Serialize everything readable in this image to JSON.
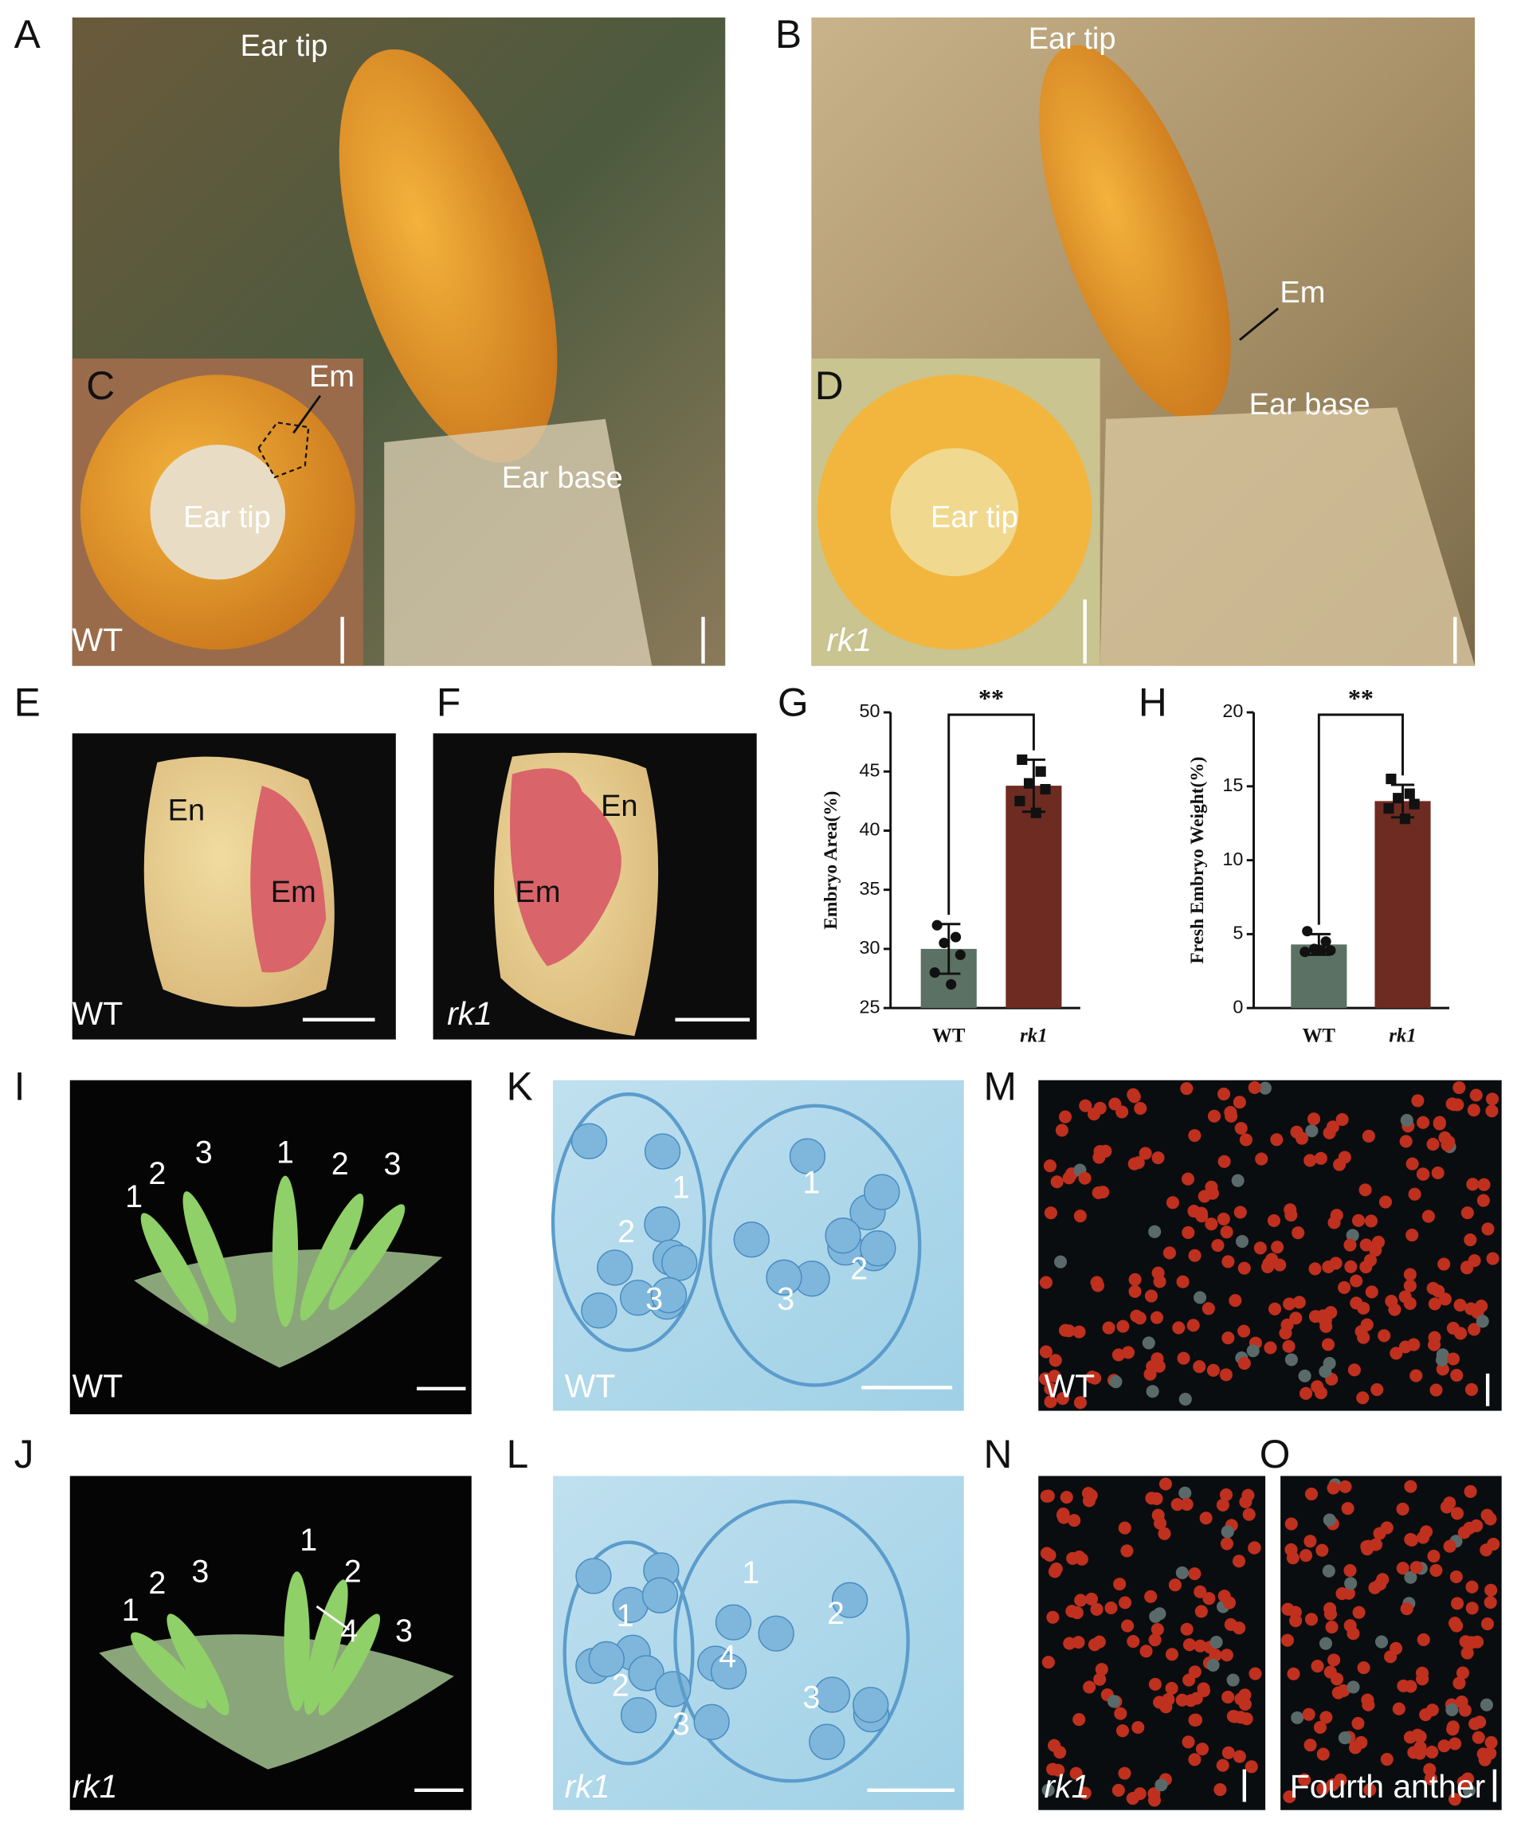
{
  "panels": {
    "a": {
      "letter": "A",
      "ear_tip": "Ear tip",
      "ear_base": "Ear base"
    },
    "b": {
      "letter": "B",
      "ear_tip": "Ear tip",
      "em": "Em",
      "ear_base": "Ear base"
    },
    "c": {
      "letter": "C",
      "em": "Em",
      "ear_tip": "Ear tip",
      "genotype": "WT"
    },
    "d": {
      "letter": "D",
      "ear_tip": "Ear tip",
      "genotype": "rk1"
    },
    "e": {
      "letter": "E",
      "en": "En",
      "em": "Em",
      "genotype": "WT"
    },
    "f": {
      "letter": "F",
      "en": "En",
      "em": "Em",
      "genotype": "rk1"
    },
    "i": {
      "letter": "I",
      "numbers": [
        1,
        2,
        3,
        1,
        2,
        3
      ],
      "genotype": "WT"
    },
    "j": {
      "letter": "J",
      "numbers": [
        1,
        2,
        3,
        1,
        2,
        4,
        3
      ],
      "genotype": "rk1"
    },
    "k": {
      "letter": "K",
      "numbers": [
        1,
        2,
        3,
        1,
        2,
        3
      ],
      "genotype": "WT"
    },
    "l": {
      "letter": "L",
      "numbers": [
        1,
        2,
        3,
        1,
        2,
        4,
        3
      ],
      "genotype": "rk1"
    },
    "m": {
      "letter": "M",
      "genotype": "WT"
    },
    "n": {
      "letter": "N",
      "genotype": "rk1"
    },
    "o": {
      "letter": "O",
      "caption": "Fourth anther"
    }
  },
  "chart_data": [
    {
      "type": "bar",
      "letter": "G",
      "ylabel": "Embryo Area(%)",
      "categories": [
        "WT",
        "rk1"
      ],
      "values": [
        30,
        43.8
      ],
      "errors": [
        2.1,
        2.2
      ],
      "points": [
        [
          32,
          31,
          30.5,
          29.5,
          28,
          27
        ],
        [
          46,
          45,
          44,
          43.5,
          42.5,
          41.5
        ]
      ],
      "colors": [
        "#5b7163",
        "#6e2b22"
      ],
      "significance": "**",
      "ylim": [
        25,
        50
      ],
      "yticks": [
        25,
        30,
        35,
        40,
        45,
        50
      ]
    },
    {
      "type": "bar",
      "letter": "H",
      "ylabel": "Fresh Embryo Weight(%)",
      "categories": [
        "WT",
        "rk1"
      ],
      "values": [
        4.3,
        14
      ],
      "errors": [
        0.7,
        1.1
      ],
      "points": [
        [
          5.2,
          4.5,
          4,
          3.9,
          3.8,
          3.9
        ],
        [
          15.5,
          14.5,
          14.2,
          13.8,
          13.5,
          12.8
        ]
      ],
      "colors": [
        "#5b7163",
        "#6e2b22"
      ],
      "significance": "**",
      "ylim": [
        0,
        20
      ],
      "yticks": [
        0,
        5,
        10,
        15,
        20
      ]
    }
  ]
}
